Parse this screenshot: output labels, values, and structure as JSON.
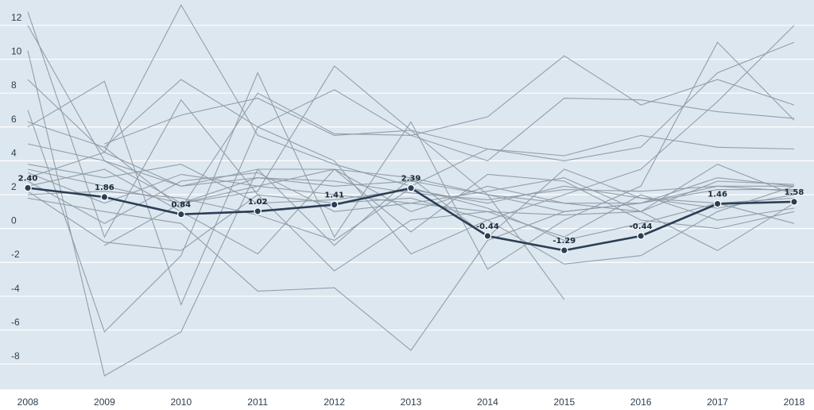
{
  "chart_data": {
    "type": "line",
    "title": "",
    "xlabel": "",
    "ylabel": "",
    "x": [
      "2008",
      "2009",
      "2010",
      "2011",
      "2012",
      "2013",
      "2014",
      "2015",
      "2016",
      "2017",
      "2018"
    ],
    "ylim": [
      -9.5,
      13.5
    ],
    "yticks": [
      12,
      10,
      8,
      6,
      4,
      2,
      0,
      -2,
      -4,
      -6,
      -8
    ],
    "grid": true,
    "colors": {
      "background": "#dde7ef",
      "grid": "#ffffff",
      "background_series": "#8e9aa6",
      "highlight": "#2b3e55"
    },
    "highlight_series": {
      "values": [
        2.4,
        1.86,
        0.84,
        1.02,
        1.41,
        2.39,
        -0.44,
        -1.29,
        -0.44,
        1.46,
        1.58
      ],
      "labels": [
        "2.40",
        "1.86",
        "0.84",
        "1.02",
        "1.41",
        "2.39",
        "-0.44",
        "-1.29",
        "-0.44",
        "1.46",
        "1.58"
      ]
    },
    "background_series": [
      {
        "values": [
          12.8,
          -0.5,
          7.6,
          2.0,
          1.5,
          1.8,
          0.5,
          2.0,
          3.5,
          7.5,
          12.0
        ]
      },
      {
        "values": [
          12.0,
          4.0,
          2.5,
          3.0,
          2.5,
          2.8,
          2.0,
          1.5,
          1.5,
          2.5,
          2.5
        ]
      },
      {
        "values": [
          10.5,
          -8.7,
          -6.1,
          3.5,
          3.5,
          3.0,
          2.0,
          1.0,
          1.5,
          3.0,
          2.5
        ]
      },
      {
        "values": [
          8.8,
          4.5,
          13.2,
          5.5,
          3.8,
          2.5,
          4.7,
          4.3,
          5.5,
          4.8,
          4.7
        ]
      },
      {
        "values": [
          7.0,
          -6.1,
          -1.6,
          9.2,
          -0.5,
          6.3,
          -2.4,
          0.5,
          2.5,
          11.0,
          6.4
        ]
      },
      {
        "values": [
          6.3,
          4.8,
          1.2,
          8.0,
          5.6,
          5.5,
          4.0,
          7.7,
          7.6,
          6.9,
          6.5
        ]
      },
      {
        "values": [
          6.0,
          8.7,
          -4.5,
          6.0,
          8.2,
          5.5,
          6.6,
          10.2,
          7.3,
          8.8,
          7.3
        ]
      },
      {
        "values": [
          5.0,
          4.0,
          1.5,
          2.2,
          9.6,
          5.8,
          2.0,
          -4.2,
          null,
          null,
          null
        ]
      },
      {
        "values": [
          3.8,
          3.0,
          3.8,
          1.5,
          1.7,
          2.3,
          1.5,
          2.5,
          1.8,
          1.5,
          1.8
        ]
      },
      {
        "values": [
          3.5,
          2.5,
          1.5,
          3.0,
          2.8,
          2.1,
          1.7,
          2.3,
          2.2,
          2.5,
          2.2
        ]
      },
      {
        "values": [
          3.3,
          1.5,
          3.2,
          2.5,
          2.0,
          1.5,
          1.0,
          0.8,
          1.0,
          2.8,
          2.6
        ]
      },
      {
        "values": [
          3.0,
          4.5,
          2.5,
          3.5,
          -1.0,
          3.0,
          -0.5,
          3.5,
          1.8,
          1.2,
          2.0
        ]
      },
      {
        "values": [
          2.8,
          0.3,
          2.8,
          3.3,
          1.0,
          1.5,
          2.2,
          3.0,
          1.0,
          3.8,
          2.0
        ]
      },
      {
        "values": [
          2.5,
          3.5,
          1.0,
          -1.5,
          3.5,
          1.0,
          2.5,
          1.5,
          1.0,
          -1.3,
          1.5
        ]
      },
      {
        "values": [
          2.2,
          -0.8,
          -1.3,
          2.0,
          -2.5,
          0.5,
          1.0,
          -0.5,
          2.0,
          0.5,
          1.2
        ]
      },
      {
        "values": [
          2.0,
          2.2,
          1.8,
          0.8,
          -0.7,
          2.4,
          1.2,
          -0.7,
          0.3,
          1.5,
          0.3
        ]
      },
      {
        "values": [
          1.8,
          1.0,
          0.3,
          -3.7,
          -3.5,
          -7.2,
          -0.7,
          1.0,
          1.5,
          2.3,
          2.3
        ]
      },
      {
        "values": [
          1.0,
          null,
          null,
          null,
          null,
          null,
          null,
          null,
          null,
          null,
          null
        ]
      },
      {
        "values": [
          null,
          5.0,
          6.7,
          7.7,
          5.5,
          5.8,
          4.7,
          4.0,
          4.8,
          9.2,
          11.0
        ]
      },
      {
        "values": [
          null,
          4.8,
          8.8,
          6.0,
          4.0,
          -1.5,
          0.5,
          -2.1,
          -1.6,
          1.0,
          2.5
        ]
      },
      {
        "values": [
          null,
          -1.0,
          1.5,
          2.5,
          3.5,
          -0.2,
          3.2,
          2.8,
          0.5,
          0.0,
          1.0
        ]
      }
    ]
  }
}
